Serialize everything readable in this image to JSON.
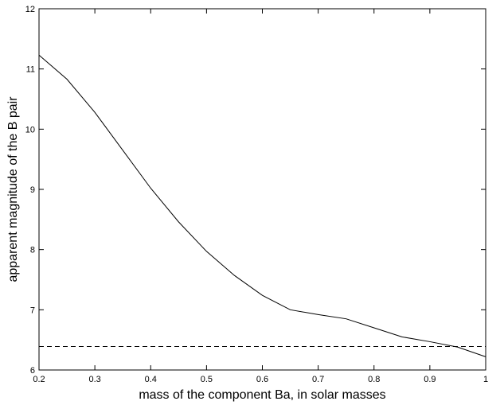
{
  "chart_data": {
    "type": "line",
    "title": "",
    "xlabel": "mass of the component Ba, in solar masses",
    "ylabel": "apparent magnitude of the B pair",
    "xlim": [
      0.2,
      1.0
    ],
    "ylim": [
      6,
      12
    ],
    "xticks": [
      0.2,
      0.3,
      0.4,
      0.5,
      0.6,
      0.7,
      0.8,
      0.9,
      1.0
    ],
    "yticks": [
      6,
      7,
      8,
      9,
      10,
      11,
      12
    ],
    "xtick_labels": [
      "0.2",
      "0.3",
      "0.4",
      "0.5",
      "0.6",
      "0.7",
      "0.8",
      "0.9",
      "1"
    ],
    "ytick_labels": [
      "6",
      "7",
      "8",
      "9",
      "10",
      "11",
      "12"
    ],
    "grid": false,
    "series": [
      {
        "style": "solid",
        "color": "#000000",
        "x": [
          0.2,
          0.25,
          0.3,
          0.35,
          0.4,
          0.45,
          0.5,
          0.55,
          0.6,
          0.65,
          0.7,
          0.75,
          0.8,
          0.85,
          0.9,
          0.95,
          1.0
        ],
        "y": [
          11.23,
          10.83,
          10.28,
          9.65,
          9.02,
          8.46,
          7.97,
          7.57,
          7.24,
          7.0,
          6.92,
          6.85,
          6.7,
          6.55,
          6.47,
          6.38,
          6.22
        ]
      },
      {
        "style": "dashed",
        "color": "#000000",
        "x": [
          0.2,
          1.0
        ],
        "y": [
          6.39,
          6.39
        ]
      }
    ]
  }
}
